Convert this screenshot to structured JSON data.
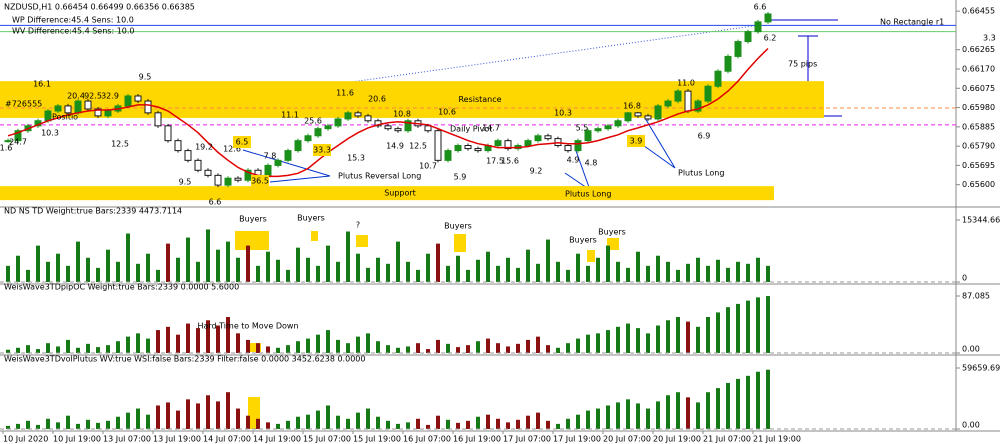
{
  "chart_data": [
    {
      "type": "candlestick",
      "title": "NZDUSD,H1  0.66454 0.66499 0.66356 0.66385",
      "subtitles": [
        "WP Difference:45.4 Sens: 10.0",
        "WV Difference:45.4 Sens: 10.0"
      ],
      "up_color": "#1a8f1a",
      "down_color": "#1a1a1a",
      "values": [
        0.65817,
        0.65866,
        0.6589,
        0.65915,
        0.65963,
        0.65988,
        0.65954,
        0.66012,
        0.65973,
        0.65939,
        0.65963,
        0.65988,
        0.66037,
        0.66012,
        0.65954,
        0.6589,
        0.65817,
        0.65768,
        0.6572,
        0.65671,
        0.65646,
        0.65598,
        0.65632,
        0.65622,
        0.65671,
        0.65646,
        0.65695,
        0.6572,
        0.65768,
        0.65817,
        0.65841,
        0.65876,
        0.6589,
        0.65924,
        0.65954,
        0.65939,
        0.65915,
        0.6589,
        0.65876,
        0.65866,
        0.65915,
        0.6589,
        0.65866,
        0.6572,
        0.65768,
        0.65793,
        0.65778,
        0.65768,
        0.65793,
        0.65817,
        0.65778,
        0.65793,
        0.65817,
        0.65841,
        0.65827,
        0.65793,
        0.65768,
        0.65817,
        0.65866,
        0.65876,
        0.6589,
        0.65915,
        0.65954,
        0.65939,
        0.65924,
        0.65988,
        0.66012,
        0.66061,
        0.65963,
        0.66012,
        0.66085,
        0.66159,
        0.66232,
        0.66305,
        0.66354,
        0.66402,
        0.66441
      ],
      "ma_color": "#e00000",
      "ma_values": [
        0.65841,
        0.65856,
        0.65876,
        0.65895,
        0.65915,
        0.65929,
        0.65944,
        0.65954,
        0.65963,
        0.65968,
        0.65968,
        0.65973,
        0.65983,
        0.65993,
        0.65993,
        0.65983,
        0.65963,
        0.65929,
        0.65895,
        0.65856,
        0.65807,
        0.65759,
        0.6572,
        0.65685,
        0.65661,
        0.65646,
        0.65641,
        0.65641,
        0.65646,
        0.65656,
        0.6568,
        0.6572,
        0.65759,
        0.65793,
        0.65827,
        0.65856,
        0.6588,
        0.65895,
        0.65905,
        0.6591,
        0.65905,
        0.659,
        0.65895,
        0.65876,
        0.65856,
        0.65837,
        0.65817,
        0.65802,
        0.65793,
        0.65783,
        0.65783,
        0.65783,
        0.65788,
        0.65798,
        0.65802,
        0.65807,
        0.65802,
        0.65802,
        0.65807,
        0.65817,
        0.65832,
        0.65846,
        0.65866,
        0.6588,
        0.65895,
        0.6591,
        0.65929,
        0.65949,
        0.65963,
        0.65973,
        0.65993,
        0.66022,
        0.66061,
        0.6611,
        0.66168,
        0.66222,
        0.66271
      ],
      "ylim": [
        0.655,
        0.665
      ],
      "yticks": [
        0.66455,
        0.66265,
        {
          "value": 0.6617,
          "label": "0.66170"
        },
        0.66075,
        {
          "value": 0.6598,
          "label": "0.65980"
        },
        0.65885,
        {
          "value": 0.6579,
          "label": "0.65790"
        },
        0.65695,
        {
          "value": 0.656,
          "label": "0.65600"
        }
      ],
      "zone_color": "#ffd700",
      "zones": [
        {
          "label": "Resistance",
          "ylim": [
            0.65929,
            0.6611
          ]
        },
        {
          "label": "Support",
          "ylim": [
            0.65524,
            0.65593
          ]
        }
      ],
      "lines": [
        {
          "value": 0.66385,
          "color": "#2244ee"
        },
        {
          "value": 0.66354,
          "color": "#66cc66"
        },
        {
          "value": 0.65978,
          "color": "#ff8844"
        },
        {
          "value": 0.65895,
          "color": "#ee22ee"
        }
      ],
      "wave_labels": [
        "16.1",
        "20.4",
        "92.5",
        "32.9",
        "9.5",
        "10.3",
        "12.5",
        "24.7",
        "1.6",
        "6.6",
        "9.5",
        "12.6",
        "19.2",
        "6.5",
        "36.5",
        "7.8",
        "11.1",
        "25.6",
        "33.3",
        "11.6",
        "20.6",
        "15.3",
        "10.8",
        "14.9",
        "12.5",
        "10.7",
        "10.6",
        "5.9",
        "14.7",
        "17.5",
        "15.6",
        "9.2",
        "10.3",
        "5.5",
        "4.9",
        "4.8",
        "16.8",
        "3.9",
        "11.0",
        "6.9",
        "6.6",
        "6.2"
      ],
      "annotations": [
        {
          "text": "No Rectangle r1",
          "color": "#000000"
        },
        {
          "text": "75 pips",
          "color": "#0000cc"
        },
        {
          "text": "Daily Pivot",
          "color": "#ee22ee"
        },
        {
          "text": "Plutus Reversal Long",
          "color": "#0000cc"
        },
        {
          "text": "Plutus Long",
          "color": "#0000cc"
        },
        {
          "text": "Plutus Long",
          "color": "#0000cc"
        },
        {
          "text": "3.3",
          "color": "#33bb33"
        },
        {
          "text": "Positio",
          "color": "#000000"
        },
        {
          "text": "#726555",
          "color": "#000000"
        }
      ]
    },
    {
      "type": "bar",
      "title": "ND NS TD Weight:true Bars:2339  4473.7114",
      "values": [
        4000,
        6500,
        3000,
        9000,
        5000,
        7000,
        4000,
        10000,
        6000,
        3500,
        8000,
        5000,
        12000,
        4500,
        7000,
        3000,
        9500,
        6000,
        11000,
        5000,
        13000,
        8000,
        10000,
        6000,
        9000,
        4000,
        7500,
        5500,
        3000,
        8500,
        6000,
        4000,
        9000,
        5000,
        12500,
        7000,
        3500,
        6000,
        4500,
        10000,
        5000,
        3000,
        7000,
        9500,
        4000,
        6500,
        3000,
        5500,
        7500,
        4000,
        6000,
        3500,
        8000,
        4500,
        10500,
        5000,
        3000,
        7000,
        4000,
        6000,
        9000,
        5000,
        3500,
        7500,
        4000,
        6500,
        5000,
        3000,
        4500,
        6000,
        4000,
        5500,
        3500,
        5000,
        4500,
        6000,
        4000
      ],
      "colors": [
        "#157a15",
        "#157a15",
        "#157a15",
        "#157a15",
        "#157a15",
        "#157a15",
        "#157a15",
        "#157a15",
        "#157a15",
        "#157a15",
        "#157a15",
        "#157a15",
        "#157a15",
        "#157a15",
        "#157a15",
        "#157a15",
        "#8b1010",
        "#157a15",
        "#157a15",
        "#157a15",
        "#157a15",
        "#157a15",
        "#157a15",
        "#157a15",
        "#8b1010",
        "#157a15",
        "#157a15",
        "#157a15",
        "#157a15",
        "#157a15",
        "#157a15",
        "#157a15",
        "#157a15",
        "#157a15",
        "#157a15",
        "#157a15",
        "#157a15",
        "#157a15",
        "#157a15",
        "#157a15",
        "#157a15",
        "#157a15",
        "#157a15",
        "#8b1010",
        "#157a15",
        "#157a15",
        "#157a15",
        "#157a15",
        "#157a15",
        "#157a15",
        "#157a15",
        "#157a15",
        "#157a15",
        "#157a15",
        "#157a15",
        "#157a15",
        "#157a15",
        "#157a15",
        "#157a15",
        "#157a15",
        "#157a15",
        "#157a15",
        "#157a15",
        "#157a15",
        "#157a15",
        "#157a15",
        "#157a15",
        "#157a15",
        "#157a15",
        "#157a15",
        "#157a15",
        "#157a15",
        "#157a15",
        "#157a15",
        "#157a15",
        "#157a15",
        "#157a15"
      ],
      "ylim": [
        0,
        15344.663
      ],
      "yticks": [
        15344.663,
        0
      ],
      "annotations": [
        "Buyers",
        "Buyers",
        "?",
        "Buyers",
        "Buyers",
        "Buyers"
      ]
    },
    {
      "type": "bar",
      "title": "WeisWave3TDpipOC Weight:true Bars:2339 0.0000 5.6000",
      "values": [
        5,
        8,
        12,
        6,
        15,
        10,
        20,
        8,
        14,
        9,
        12,
        18,
        25,
        30,
        22,
        35,
        40,
        28,
        45,
        38,
        50,
        42,
        55,
        30,
        20,
        15,
        10,
        8,
        12,
        18,
        22,
        28,
        35,
        20,
        15,
        25,
        30,
        18,
        12,
        8,
        10,
        15,
        6,
        20,
        14,
        9,
        12,
        18,
        22,
        15,
        10,
        14,
        20,
        25,
        12,
        8,
        15,
        22,
        28,
        30,
        35,
        40,
        45,
        38,
        30,
        42,
        50,
        55,
        48,
        40,
        55,
        62,
        70,
        75,
        80,
        85,
        87
      ],
      "colors": [
        "#157a15",
        "#157a15",
        "#157a15",
        "#157a15",
        "#157a15",
        "#157a15",
        "#157a15",
        "#157a15",
        "#157a15",
        "#157a15",
        "#157a15",
        "#157a15",
        "#157a15",
        "#157a15",
        "#157a15",
        "#8b1010",
        "#8b1010",
        "#8b1010",
        "#8b1010",
        "#8b1010",
        "#8b1010",
        "#8b1010",
        "#8b1010",
        "#8b1010",
        "#8b1010",
        "#8b1010",
        "#8b1010",
        "#157a15",
        "#157a15",
        "#157a15",
        "#157a15",
        "#157a15",
        "#157a15",
        "#157a15",
        "#157a15",
        "#157a15",
        "#157a15",
        "#157a15",
        "#157a15",
        "#157a15",
        "#157a15",
        "#8b1010",
        "#8b1010",
        "#8b1010",
        "#157a15",
        "#8b1010",
        "#8b1010",
        "#157a15",
        "#8b1010",
        "#8b1010",
        "#8b1010",
        "#8b1010",
        "#8b1010",
        "#8b1010",
        "#8b1010",
        "#157a15",
        "#157a15",
        "#157a15",
        "#157a15",
        "#157a15",
        "#157a15",
        "#157a15",
        "#157a15",
        "#157a15",
        "#157a15",
        "#157a15",
        "#157a15",
        "#157a15",
        "#8b1010",
        "#157a15",
        "#157a15",
        "#157a15",
        "#157a15",
        "#157a15",
        "#157a15",
        "#157a15",
        "#157a15"
      ],
      "ylim": [
        0,
        87.085
      ],
      "yticks": [
        87.085,
        {
          "value": 0,
          "label": "0.00"
        }
      ],
      "annotations": [
        "Hard Time to Move Down"
      ]
    },
    {
      "type": "bar",
      "title": "WeisWave3TDvolPlutus WV:true WSI:false Bars:2339 Filter:false 0.0000 3452.6238 0.0000",
      "values": [
        3000,
        5000,
        8000,
        4000,
        10000,
        6500,
        13000,
        5000,
        9000,
        6000,
        8000,
        12000,
        16000,
        20000,
        14000,
        23000,
        26000,
        18000,
        29000,
        25000,
        33000,
        27000,
        36000,
        20000,
        13000,
        10000,
        6500,
        5000,
        8000,
        12000,
        14000,
        18000,
        23000,
        13000,
        10000,
        16000,
        20000,
        12000,
        8000,
        5000,
        6500,
        10000,
        4000,
        13000,
        9000,
        6000,
        8000,
        12000,
        14000,
        10000,
        6500,
        9000,
        13000,
        16000,
        8000,
        5000,
        10000,
        14000,
        18000,
        20000,
        23000,
        26000,
        29000,
        25000,
        20000,
        27000,
        33000,
        36000,
        31000,
        26000,
        36000,
        40000,
        45000,
        49000,
        52000,
        56000,
        58000
      ],
      "colors": [
        "#157a15",
        "#157a15",
        "#157a15",
        "#157a15",
        "#157a15",
        "#157a15",
        "#157a15",
        "#157a15",
        "#157a15",
        "#157a15",
        "#157a15",
        "#157a15",
        "#157a15",
        "#157a15",
        "#157a15",
        "#8b1010",
        "#8b1010",
        "#8b1010",
        "#8b1010",
        "#8b1010",
        "#8b1010",
        "#8b1010",
        "#8b1010",
        "#8b1010",
        "#8b1010",
        "#8b1010",
        "#8b1010",
        "#157a15",
        "#157a15",
        "#157a15",
        "#157a15",
        "#157a15",
        "#157a15",
        "#157a15",
        "#157a15",
        "#157a15",
        "#157a15",
        "#157a15",
        "#157a15",
        "#157a15",
        "#157a15",
        "#8b1010",
        "#8b1010",
        "#8b1010",
        "#157a15",
        "#8b1010",
        "#8b1010",
        "#157a15",
        "#8b1010",
        "#8b1010",
        "#8b1010",
        "#8b1010",
        "#8b1010",
        "#8b1010",
        "#8b1010",
        "#157a15",
        "#157a15",
        "#157a15",
        "#157a15",
        "#157a15",
        "#157a15",
        "#157a15",
        "#157a15",
        "#157a15",
        "#157a15",
        "#157a15",
        "#157a15",
        "#157a15",
        "#8b1010",
        "#157a15",
        "#157a15",
        "#157a15",
        "#157a15",
        "#157a15",
        "#157a15",
        "#157a15",
        "#157a15"
      ],
      "ylim": [
        0,
        59659.697
      ],
      "yticks": [
        59659.697,
        {
          "value": 0,
          "label": "0.00"
        }
      ],
      "x_labels": [
        "10 Jul 2020",
        "10 Jul 19:00",
        "13 Jul 07:00",
        "13 Jul 19:00",
        "14 Jul 07:00",
        "14 Jul 19:00",
        "15 Jul 07:00",
        "15 Jul 19:00",
        "16 Jul 07:00",
        "16 Jul 19:00",
        "17 Jul 07:00",
        "17 Jul 19:00",
        "20 Jul 07:00",
        "20 Jul 19:00",
        "21 Jul 07:00",
        "21 Jul 19:00"
      ]
    }
  ]
}
